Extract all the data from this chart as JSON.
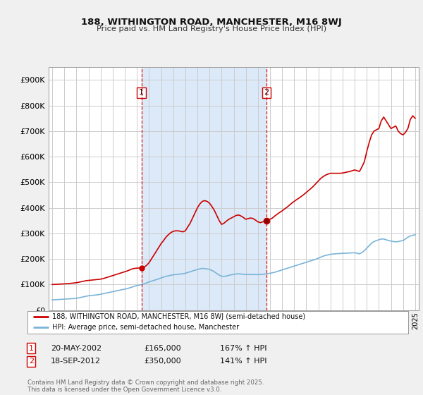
{
  "title": "188, WITHINGTON ROAD, MANCHESTER, M16 8WJ",
  "subtitle": "Price paid vs. HM Land Registry's House Price Index (HPI)",
  "background_color": "#f0f0f0",
  "plot_bg_color": "#ffffff",
  "highlight_color": "#dce9f8",
  "ylabel_color": "#222222",
  "ylim": [
    0,
    950000
  ],
  "yticks": [
    0,
    100000,
    200000,
    300000,
    400000,
    500000,
    600000,
    700000,
    800000,
    900000
  ],
  "ytick_labels": [
    "£0",
    "£100K",
    "£200K",
    "£300K",
    "£400K",
    "£500K",
    "£600K",
    "£700K",
    "£800K",
    "£900K"
  ],
  "sale1_date": "20-MAY-2002",
  "sale1_price": 165000,
  "sale1_hpi_pct": "167% ↑ HPI",
  "sale2_date": "18-SEP-2012",
  "sale2_price": 350000,
  "sale2_hpi_pct": "141% ↑ HPI",
  "legend_line1": "188, WITHINGTON ROAD, MANCHESTER, M16 8WJ (semi-detached house)",
  "legend_line2": "HPI: Average price, semi-detached house, Manchester",
  "footer": "Contains HM Land Registry data © Crown copyright and database right 2025.\nThis data is licensed under the Open Government Licence v3.0.",
  "hpi_color": "#7ab4d8",
  "price_color": "#cc0000",
  "vline_color": "#cc0000",
  "grid_color": "#cccccc",
  "sale1_x": 2002.375,
  "sale2_x": 2012.708,
  "xlim_left": 1994.7,
  "xlim_right": 2025.3
}
